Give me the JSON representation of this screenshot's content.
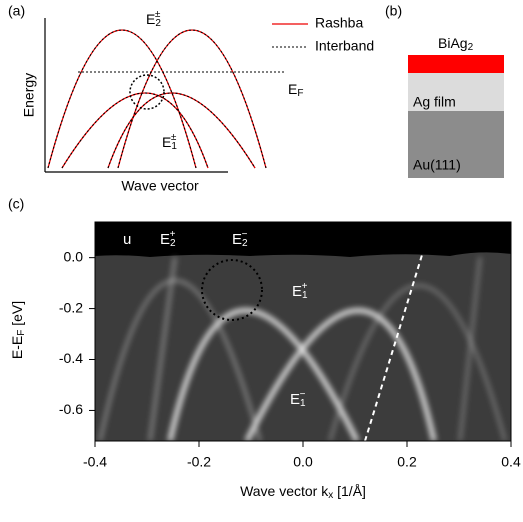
{
  "panel_a": {
    "label": "(a)",
    "y_label": "Energy",
    "x_label": "Wave vector",
    "legend": [
      "Rashba",
      "Interband"
    ],
    "fermi": {
      "base": "E",
      "sub": "F"
    },
    "upper": {
      "base": "E",
      "sub": "2",
      "sup": "±"
    },
    "lower": {
      "base": "E",
      "sub": "1",
      "sup": "±"
    }
  },
  "panel_b": {
    "label": "(b)",
    "top_layer": {
      "base": "BiAg",
      "sub": "2"
    },
    "layers": [
      "Ag film",
      "Au(111)"
    ]
  },
  "panel_c": {
    "label": "(c)",
    "y_label": {
      "base": "E-E",
      "sub": "F",
      "tail": " [eV]"
    },
    "x_label": {
      "base": "Wave vector k",
      "sub": "x",
      "tail": " [1/Å]"
    },
    "xlim": [
      -0.4,
      0.4
    ],
    "ylim": [
      -0.72,
      0.14
    ],
    "xticks": [
      -0.4,
      -0.2,
      {
        "value": 0,
        "label": "0.0"
      },
      0.2,
      0.4
    ],
    "yticks": [
      {
        "value": 0,
        "label": "0.0"
      },
      -0.2,
      -0.4,
      -0.6
    ],
    "annotations": [
      {
        "base": "u"
      },
      {
        "base": "E",
        "sub": "2",
        "sup": "+"
      },
      {
        "base": "E",
        "sub": "2",
        "sup": "−"
      },
      {
        "base": "E",
        "sub": "1",
        "sup": "+"
      },
      {
        "base": "E",
        "sub": "1",
        "sup": "−"
      }
    ]
  }
}
